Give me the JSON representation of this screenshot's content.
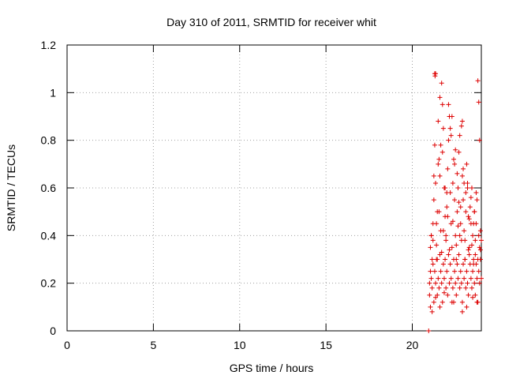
{
  "chart_data": {
    "type": "scatter",
    "title": "Day 310 of 2011, SRMTID for receiver whit",
    "xlabel": "GPS time / hours",
    "ylabel": "SRMTID / TECUs",
    "xlim": [
      0,
      24
    ],
    "ylim": [
      0,
      1.2
    ],
    "x_ticks": [
      0,
      5,
      10,
      15,
      20
    ],
    "x_tick_labels": [
      "0",
      "5",
      "10",
      "15",
      "20"
    ],
    "y_ticks": [
      0,
      0.2,
      0.4,
      0.6,
      0.8,
      1,
      1.2
    ],
    "y_tick_labels": [
      "0",
      "0.2",
      "0.4",
      "0.6",
      "0.8",
      "1",
      "1.2"
    ],
    "grid": true,
    "marker": "plus",
    "color": "#dd0000",
    "series": [
      {
        "x": [
          20.95,
          21.0,
          21.05,
          21.1,
          21.15,
          21.2,
          21.25,
          21.3,
          21.35,
          21.4,
          21.45,
          21.5,
          21.55,
          21.6,
          21.65,
          21.7,
          21.75,
          21.8,
          21.85,
          21.9,
          21.95,
          22.0,
          22.05,
          22.1,
          22.15,
          22.2,
          22.25,
          22.3,
          22.35,
          22.4,
          22.45,
          22.5,
          22.55,
          22.6,
          22.65,
          22.7,
          22.75,
          22.8,
          22.85,
          22.9,
          22.95,
          23.0,
          23.05,
          23.1,
          23.15,
          23.2,
          23.25,
          23.3,
          23.35,
          23.4,
          23.45,
          23.5,
          23.55,
          23.6,
          23.65,
          23.7,
          23.75,
          23.8,
          23.85,
          23.9,
          23.95,
          24.0,
          21.0,
          21.05,
          21.1,
          21.15,
          21.2,
          21.25,
          21.3,
          21.35,
          21.4,
          21.45,
          21.5,
          21.55,
          21.6,
          21.65,
          21.7,
          21.75,
          21.8,
          21.85,
          21.9,
          21.95,
          22.0,
          22.05,
          22.1,
          22.15,
          22.2,
          22.25,
          22.3,
          22.35,
          22.4,
          22.45,
          22.5,
          22.55,
          22.6,
          22.65,
          22.7,
          22.75,
          22.8,
          22.85,
          22.9,
          22.95,
          23.0,
          23.05,
          23.1,
          23.15,
          23.2,
          23.25,
          23.3,
          23.35,
          23.4,
          23.45,
          23.5,
          23.55,
          23.6,
          23.65,
          23.7,
          23.75,
          23.8,
          23.85,
          23.9,
          23.95,
          24.0,
          21.3,
          21.32,
          21.35,
          21.6,
          21.7,
          21.75,
          22.1,
          22.3,
          22.9,
          23.8,
          23.85,
          21.5,
          21.55,
          21.65,
          22.2,
          22.25,
          22.45,
          22.5,
          22.85,
          22.95,
          23.9,
          21.25,
          21.9,
          22.0,
          22.6,
          22.7,
          23.0,
          23.2,
          23.4,
          23.6,
          23.7,
          21.2,
          21.45,
          21.8,
          22.05,
          22.35,
          22.65,
          22.8,
          23.1,
          23.3,
          23.55,
          21.1,
          21.4,
          21.95,
          22.15,
          22.55,
          22.75,
          23.05,
          23.25,
          23.45,
          23.65,
          23.95,
          21.05,
          21.15,
          21.35,
          21.6,
          21.85,
          22.4,
          22.9,
          23.15,
          23.5,
          23.75
        ],
        "y": [
          0.0,
          0.2,
          0.35,
          0.4,
          0.3,
          0.38,
          0.55,
          0.78,
          0.62,
          0.45,
          0.3,
          0.7,
          0.5,
          0.65,
          0.42,
          0.33,
          0.75,
          0.85,
          0.6,
          0.48,
          0.4,
          0.52,
          0.68,
          0.8,
          0.9,
          0.58,
          0.45,
          0.35,
          0.62,
          0.72,
          0.55,
          0.4,
          0.3,
          0.5,
          0.6,
          0.75,
          0.82,
          0.45,
          0.38,
          0.65,
          0.55,
          0.42,
          0.3,
          0.58,
          0.7,
          0.62,
          0.48,
          0.35,
          0.52,
          0.45,
          0.6,
          0.4,
          0.28,
          0.5,
          0.38,
          0.45,
          0.55,
          0.3,
          0.4,
          0.35,
          0.42,
          0.38,
          0.15,
          0.25,
          0.22,
          0.18,
          0.28,
          0.12,
          0.25,
          0.2,
          0.3,
          0.15,
          0.22,
          0.18,
          0.32,
          0.25,
          0.2,
          0.12,
          0.28,
          0.22,
          0.3,
          0.18,
          0.25,
          0.15,
          0.32,
          0.2,
          0.28,
          0.22,
          0.12,
          0.18,
          0.3,
          0.25,
          0.2,
          0.15,
          0.28,
          0.22,
          0.32,
          0.18,
          0.25,
          0.2,
          0.12,
          0.28,
          0.22,
          0.3,
          0.18,
          0.25,
          0.2,
          0.15,
          0.32,
          0.28,
          0.22,
          0.18,
          0.25,
          0.3,
          0.2,
          0.15,
          0.28,
          0.22,
          0.12,
          0.25,
          0.2,
          0.3,
          0.22,
          1.08,
          1.07,
          1.08,
          0.98,
          1.04,
          0.95,
          0.95,
          0.9,
          0.88,
          1.05,
          0.96,
          0.88,
          0.72,
          0.78,
          0.85,
          0.82,
          0.7,
          0.76,
          0.86,
          0.68,
          0.8,
          0.65,
          0.6,
          0.58,
          0.66,
          0.54,
          0.62,
          0.6,
          0.56,
          0.5,
          0.58,
          0.45,
          0.5,
          0.42,
          0.48,
          0.46,
          0.44,
          0.52,
          0.5,
          0.47,
          0.45,
          0.4,
          0.36,
          0.38,
          0.34,
          0.36,
          0.4,
          0.38,
          0.34,
          0.36,
          0.32,
          0.34,
          0.1,
          0.08,
          0.14,
          0.1,
          0.16,
          0.12,
          0.08,
          0.1,
          0.14,
          0.12
        ]
      }
    ]
  }
}
